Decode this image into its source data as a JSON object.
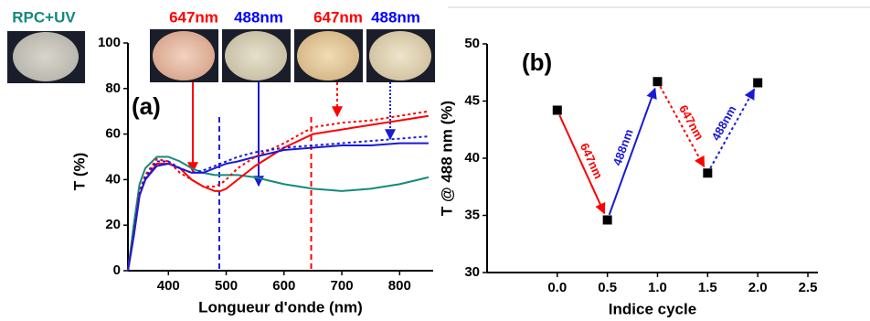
{
  "chart_data": [
    {
      "type": "line",
      "panel_label": "(a)",
      "xlabel": "Longueur d'onde (nm)",
      "ylabel": "T (%)",
      "annotations": [
        "RPC+UV",
        "647nm",
        "488nm",
        "647nm",
        "488nm"
      ],
      "annotation_colors": [
        "#138a7c",
        "#ff0000",
        "#0000ff",
        "#ff0000",
        "#0000ff"
      ],
      "x": [
        330,
        340,
        350,
        360,
        380,
        400,
        420,
        440,
        460,
        480,
        490,
        500,
        520,
        550,
        600,
        650,
        700,
        750,
        800,
        850
      ],
      "series": [
        {
          "color": "#138a7c",
          "dash": "solid",
          "values": [
            0,
            20,
            38,
            45,
            50,
            50,
            48,
            45,
            43,
            42,
            42,
            42,
            42,
            41,
            38,
            36,
            35,
            36,
            38,
            41
          ]
        },
        {
          "color": "#ff0000",
          "dash": "solid",
          "values": [
            0,
            15,
            33,
            40,
            47,
            47,
            45,
            40,
            37,
            35,
            35,
            36,
            40,
            46,
            54,
            60,
            62,
            64,
            66,
            68
          ]
        },
        {
          "color": "#1a1ad6",
          "dash": "solid",
          "values": [
            0,
            15,
            33,
            40,
            46,
            47,
            45,
            43,
            43,
            45,
            46,
            47,
            48,
            50,
            53,
            54,
            55,
            55,
            56,
            56
          ]
        },
        {
          "color": "#ff0000",
          "dash": "dotted",
          "values": [
            0,
            16,
            35,
            42,
            49,
            48,
            43,
            40,
            37,
            37,
            38,
            40,
            45,
            50,
            56,
            63,
            65,
            66,
            68,
            70
          ]
        },
        {
          "color": "#1a1ad6",
          "dash": "dotted",
          "values": [
            0,
            16,
            34,
            41,
            48,
            48,
            45,
            43,
            44,
            46,
            47,
            48,
            50,
            52,
            54,
            55,
            56,
            57,
            58,
            59
          ]
        }
      ],
      "vlines": [
        {
          "x": 488,
          "color": "#1a1ad6"
        },
        {
          "x": 647,
          "color": "#ff0000"
        }
      ],
      "xlim": [
        330,
        858
      ],
      "xticks": [
        400,
        500,
        600,
        700,
        800
      ],
      "ylim": [
        0,
        100
      ],
      "yticks": [
        0,
        20,
        40,
        60,
        80,
        100
      ]
    },
    {
      "type": "scatter",
      "panel_label": "(b)",
      "xlabel": "Indice cycle",
      "ylabel": "T @ 488 nm (%)",
      "x": [
        0,
        0.5,
        1,
        1.5,
        2
      ],
      "values": [
        44.2,
        34.6,
        46.7,
        38.7,
        46.6
      ],
      "color": "#000000",
      "segment_labels": [
        "647nm",
        "488nm",
        "647nm",
        "488nm"
      ],
      "segment_colors": [
        "#ff0000",
        "#1a1ad6",
        "#ff0000",
        "#1a1ad6"
      ],
      "segment_dash": [
        "solid",
        "solid",
        "dotted",
        "dotted"
      ],
      "xlim": [
        -0.7,
        2.6
      ],
      "xticks": [
        {
          "value": 0,
          "label": "0.0"
        },
        0.5,
        {
          "value": 1,
          "label": "1.0"
        },
        1.5,
        {
          "value": 2,
          "label": "2.0"
        },
        2.5
      ],
      "ylim": [
        30,
        50
      ],
      "yticks": [
        30,
        35,
        40,
        45,
        50
      ]
    }
  ]
}
